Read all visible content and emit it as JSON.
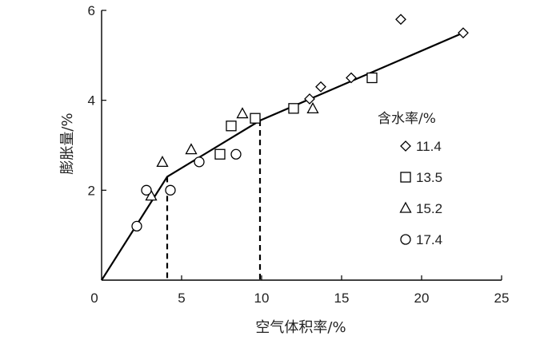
{
  "chart_data": {
    "type": "scatter",
    "xlabel": "空气体积率/%",
    "ylabel": "膨胀量/%",
    "xlim": [
      0,
      25
    ],
    "ylim": [
      0,
      6
    ],
    "xticks": [
      "0",
      "5",
      "10",
      "15",
      "20",
      "25"
    ],
    "yticks": [
      "2",
      "4",
      "6"
    ],
    "legend_title": "含水率/%",
    "legend_position": "right",
    "series": [
      {
        "name": "11.4",
        "marker": "diamond",
        "x": [
          13.0,
          13.7,
          15.6,
          18.7,
          22.6
        ],
        "y": [
          4.03,
          4.3,
          4.5,
          5.8,
          5.5
        ]
      },
      {
        "name": "13.5",
        "marker": "square",
        "x": [
          7.4,
          8.1,
          9.6,
          12.0,
          16.9
        ],
        "y": [
          2.8,
          3.43,
          3.6,
          3.82,
          4.5
        ]
      },
      {
        "name": "15.2",
        "marker": "triangle",
        "x": [
          3.1,
          3.8,
          5.6,
          8.8,
          13.2
        ],
        "y": [
          1.87,
          2.62,
          2.9,
          3.7,
          3.81
        ]
      },
      {
        "name": "17.4",
        "marker": "circle",
        "x": [
          2.2,
          2.8,
          4.3,
          6.1,
          8.4
        ],
        "y": [
          1.2,
          2.0,
          2.0,
          2.63,
          2.8
        ]
      }
    ],
    "fit_line": {
      "x": [
        0,
        4.1,
        9.9,
        22.6
      ],
      "y": [
        0,
        2.3,
        3.55,
        5.5
      ]
    },
    "dashed_markers": [
      {
        "x": 4.1,
        "y": 2.3
      },
      {
        "x": 9.9,
        "y": 3.55
      }
    ]
  }
}
